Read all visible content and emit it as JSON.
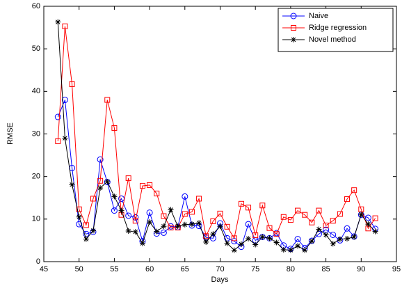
{
  "chart_data": {
    "type": "line",
    "xlabel": "Days",
    "ylabel": "RMSE",
    "x": [
      47,
      48,
      49,
      50,
      51,
      52,
      53,
      54,
      55,
      56,
      57,
      58,
      59,
      60,
      61,
      62,
      63,
      64,
      65,
      66,
      67,
      68,
      69,
      70,
      71,
      72,
      73,
      74,
      75,
      76,
      77,
      78,
      79,
      80,
      81,
      82,
      83,
      84,
      85,
      86,
      87,
      88,
      89,
      90,
      91,
      92
    ],
    "series": [
      {
        "name": "Naive",
        "color": "#0000ff",
        "marker": "circle",
        "values": [
          34,
          38,
          22,
          8.8,
          6.5,
          7,
          24,
          18.7,
          12,
          14.8,
          10.8,
          10.4,
          4.8,
          11.5,
          6.6,
          6.8,
          8.3,
          8.1,
          15.3,
          8.5,
          8.4,
          5.7,
          5.5,
          9,
          5.5,
          4.8,
          3.5,
          8.8,
          5,
          5.8,
          5.5,
          6.7,
          3.8,
          3,
          5.3,
          3.2,
          4.9,
          6.5,
          7.5,
          6.3,
          5,
          7.8,
          5.9,
          11,
          10.3,
          7.7
        ]
      },
      {
        "name": "Ridge regression",
        "color": "#ff0000",
        "marker": "square",
        "values": [
          28.3,
          55.3,
          41.7,
          12.3,
          8.6,
          14.8,
          19,
          38,
          31.4,
          11,
          19.6,
          9.6,
          17.8,
          18,
          16,
          10.7,
          8,
          8,
          11.2,
          11.7,
          14.8,
          6,
          9.5,
          11.3,
          8.2,
          5.5,
          13.6,
          12.7,
          6.2,
          13.2,
          7.9,
          6.5,
          10.5,
          9.8,
          12,
          11,
          9.2,
          12,
          8.5,
          9.6,
          11.2,
          14.7,
          16.8,
          12.3,
          7.8,
          10.2
        ]
      },
      {
        "name": "Novel method",
        "color": "#000000",
        "marker": "asterisk",
        "values": [
          56.3,
          29,
          18.1,
          10.5,
          5.3,
          7.3,
          17.3,
          18.8,
          15.3,
          12,
          7.2,
          7,
          4.3,
          9.3,
          7.1,
          8.3,
          12.2,
          8.3,
          8.7,
          8.8,
          9.1,
          4.6,
          6.5,
          8.3,
          4.3,
          2.7,
          4.1,
          5.4,
          4,
          5.8,
          5.5,
          4.5,
          2.8,
          2.7,
          3.7,
          2.7,
          4.8,
          7.6,
          6.3,
          4.2,
          5.3,
          5.4,
          5.8,
          11.1,
          8.8,
          7.1
        ]
      }
    ],
    "xlim": [
      45,
      95
    ],
    "xticks": [
      45,
      50,
      55,
      60,
      65,
      70,
      75,
      80,
      85,
      90,
      95
    ],
    "ylim": [
      0,
      60
    ],
    "yticks": [
      0,
      10,
      20,
      30,
      40,
      50,
      60
    ],
    "grid": false,
    "legend": "upper right"
  }
}
